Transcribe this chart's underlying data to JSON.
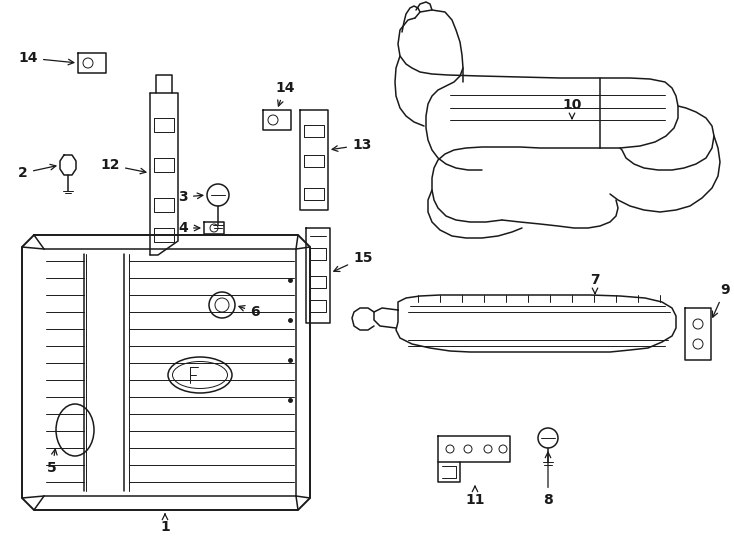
{
  "bg_color": "#ffffff",
  "line_color": "#1a1a1a",
  "lw_main": 1.1,
  "lw_thin": 0.7,
  "lw_thick": 1.4,
  "fontsize": 10
}
